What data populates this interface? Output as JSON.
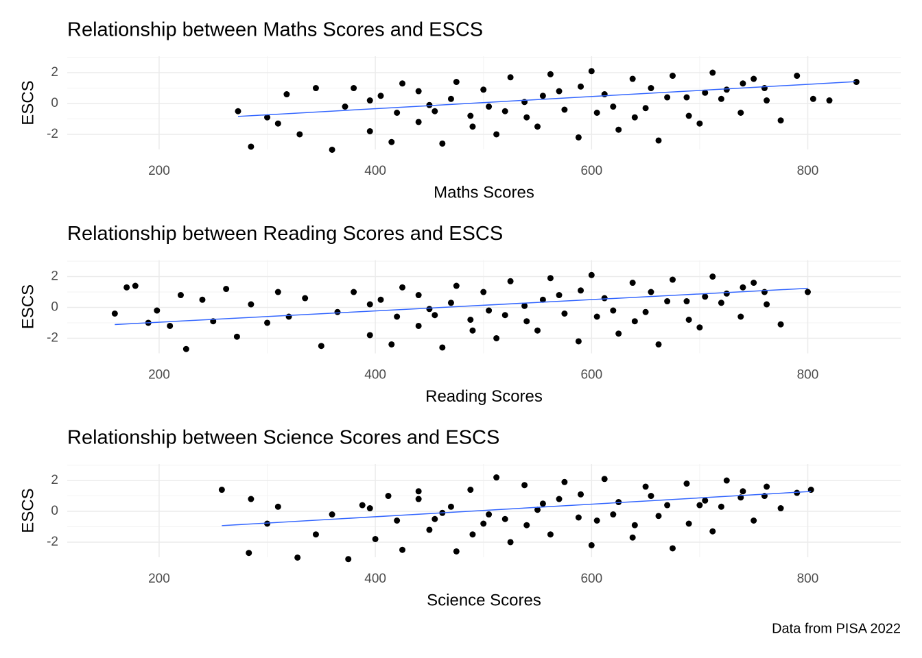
{
  "chart_data": [
    {
      "type": "scatter",
      "title": "Relationship between Maths Scores and ESCS",
      "x_label": "Maths Scores",
      "y_label": "ESCS",
      "xlim": [
        115,
        886
      ],
      "ylim": [
        -2.98,
        3.07
      ],
      "xticks": [
        200,
        400,
        600,
        800
      ],
      "yticks": [
        -2,
        0,
        2
      ],
      "grid": true,
      "color": "#000000",
      "x": [
        273,
        285,
        300,
        310,
        318,
        330,
        345,
        360,
        372,
        380,
        395,
        405,
        415,
        425,
        440,
        450,
        462,
        475,
        488,
        500,
        512,
        525,
        538,
        550,
        562,
        575,
        588,
        600,
        612,
        625,
        638,
        650,
        662,
        675,
        688,
        700,
        712,
        725,
        738,
        750,
        762,
        775,
        790,
        805,
        820,
        845,
        420,
        470,
        520,
        570,
        620,
        670,
        720,
        760,
        440,
        490,
        540,
        590,
        640,
        690,
        740,
        395,
        455,
        505,
        555,
        605,
        655,
        705
      ],
      "y": [
        -0.5,
        -2.8,
        -0.9,
        -1.3,
        0.6,
        -2.0,
        1.0,
        -3.0,
        -0.2,
        1.0,
        -1.8,
        0.5,
        -2.5,
        1.3,
        -1.2,
        -0.1,
        -2.6,
        1.4,
        -0.8,
        0.9,
        -2.0,
        1.7,
        0.1,
        -1.5,
        1.9,
        -0.4,
        -2.2,
        2.1,
        0.6,
        -1.7,
        1.6,
        -0.3,
        -2.4,
        1.8,
        0.4,
        -1.3,
        2.0,
        0.9,
        -0.6,
        1.6,
        0.2,
        -1.1,
        1.8,
        0.3,
        0.2,
        1.4,
        -0.6,
        0.3,
        -0.5,
        0.8,
        -0.2,
        0.4,
        0.3,
        1.0,
        0.8,
        -1.5,
        -0.9,
        1.1,
        -0.9,
        -0.8,
        1.3,
        0.2,
        -0.5,
        -0.2,
        0.5,
        -0.6,
        1.0,
        0.7
      ],
      "trend": {
        "color": "#3366ff",
        "x": [
          273,
          844
        ],
        "y": [
          -0.84,
          1.42
        ]
      }
    },
    {
      "type": "scatter",
      "title": "Relationship between Reading Scores and ESCS",
      "x_label": "Reading Scores",
      "y_label": "ESCS",
      "xlim": [
        115,
        886
      ],
      "ylim": [
        -2.98,
        3.07
      ],
      "xticks": [
        200,
        400,
        600,
        800
      ],
      "yticks": [
        -2,
        0,
        2
      ],
      "grid": true,
      "color": "#000000",
      "x": [
        159,
        170,
        178,
        190,
        198,
        210,
        220,
        225,
        240,
        250,
        262,
        272,
        285,
        300,
        310,
        320,
        335,
        350,
        365,
        380,
        395,
        405,
        415,
        425,
        440,
        450,
        462,
        475,
        488,
        500,
        512,
        525,
        538,
        550,
        562,
        575,
        588,
        600,
        612,
        625,
        638,
        650,
        662,
        675,
        688,
        700,
        712,
        725,
        738,
        750,
        762,
        775,
        800,
        420,
        470,
        520,
        570,
        620,
        670,
        720,
        760,
        440,
        490,
        540,
        590,
        640,
        690,
        740,
        395,
        455,
        505,
        555,
        605,
        655,
        705
      ],
      "y": [
        -0.4,
        1.3,
        1.4,
        -1.0,
        -0.2,
        -1.2,
        0.8,
        -2.7,
        0.5,
        -0.9,
        1.2,
        -1.9,
        0.2,
        -1.0,
        1.0,
        -0.6,
        0.6,
        -2.5,
        -0.3,
        1.0,
        -1.8,
        0.5,
        -2.4,
        1.3,
        -1.2,
        -0.1,
        -2.6,
        1.4,
        -0.8,
        1.0,
        -2.0,
        1.7,
        0.1,
        -1.5,
        1.9,
        -0.4,
        -2.2,
        2.1,
        0.6,
        -1.7,
        1.6,
        -0.3,
        -2.4,
        1.8,
        0.4,
        -1.3,
        2.0,
        0.9,
        -0.6,
        1.6,
        0.2,
        -1.1,
        1.0,
        -0.6,
        0.3,
        -0.5,
        0.8,
        -0.2,
        0.4,
        0.3,
        1.0,
        0.8,
        -1.5,
        -0.9,
        1.1,
        -0.9,
        -0.8,
        1.3,
        0.2,
        -0.5,
        -0.2,
        0.5,
        -0.6,
        1.0,
        0.7
      ],
      "trend": {
        "color": "#3366ff",
        "x": [
          159,
          800
        ],
        "y": [
          -1.11,
          1.24
        ]
      }
    },
    {
      "type": "scatter",
      "title": "Relationship between Science Scores and ESCS",
      "x_label": "Science Scores",
      "y_label": "ESCS",
      "xlim": [
        115,
        886
      ],
      "ylim": [
        -2.98,
        3.07
      ],
      "xticks": [
        200,
        400,
        600,
        800
      ],
      "yticks": [
        -2,
        0,
        2
      ],
      "grid": true,
      "color": "#000000",
      "x": [
        258,
        283,
        285,
        300,
        310,
        328,
        345,
        360,
        375,
        388,
        400,
        412,
        425,
        440,
        450,
        462,
        475,
        488,
        500,
        512,
        525,
        538,
        550,
        562,
        575,
        588,
        600,
        612,
        625,
        638,
        650,
        662,
        675,
        688,
        700,
        712,
        725,
        738,
        750,
        762,
        775,
        790,
        803,
        420,
        470,
        520,
        570,
        620,
        670,
        720,
        760,
        440,
        490,
        540,
        590,
        640,
        690,
        740,
        395,
        455,
        505,
        555,
        605,
        655,
        705
      ],
      "y": [
        1.4,
        -2.7,
        0.8,
        -0.8,
        0.3,
        -3.0,
        -1.5,
        -0.2,
        -3.1,
        0.4,
        -1.8,
        1.0,
        -2.5,
        1.3,
        -1.2,
        -0.1,
        -2.6,
        1.4,
        -0.8,
        2.2,
        -2.0,
        1.7,
        0.1,
        -1.5,
        1.9,
        -0.4,
        -2.2,
        2.1,
        0.6,
        -1.7,
        1.6,
        -0.3,
        -2.4,
        1.8,
        0.4,
        -1.3,
        2.0,
        0.9,
        -0.6,
        1.6,
        0.2,
        1.2,
        1.4,
        -0.6,
        0.3,
        -0.5,
        0.8,
        -0.2,
        0.4,
        0.3,
        1.0,
        0.8,
        -1.5,
        -0.9,
        1.1,
        -0.9,
        -0.8,
        1.3,
        0.2,
        -0.5,
        -0.2,
        0.5,
        -0.6,
        1.0,
        0.7
      ],
      "trend": {
        "color": "#3366ff",
        "x": [
          258,
          803
        ],
        "y": [
          -0.93,
          1.29
        ]
      }
    }
  ],
  "caption": "Data from PISA 2022"
}
